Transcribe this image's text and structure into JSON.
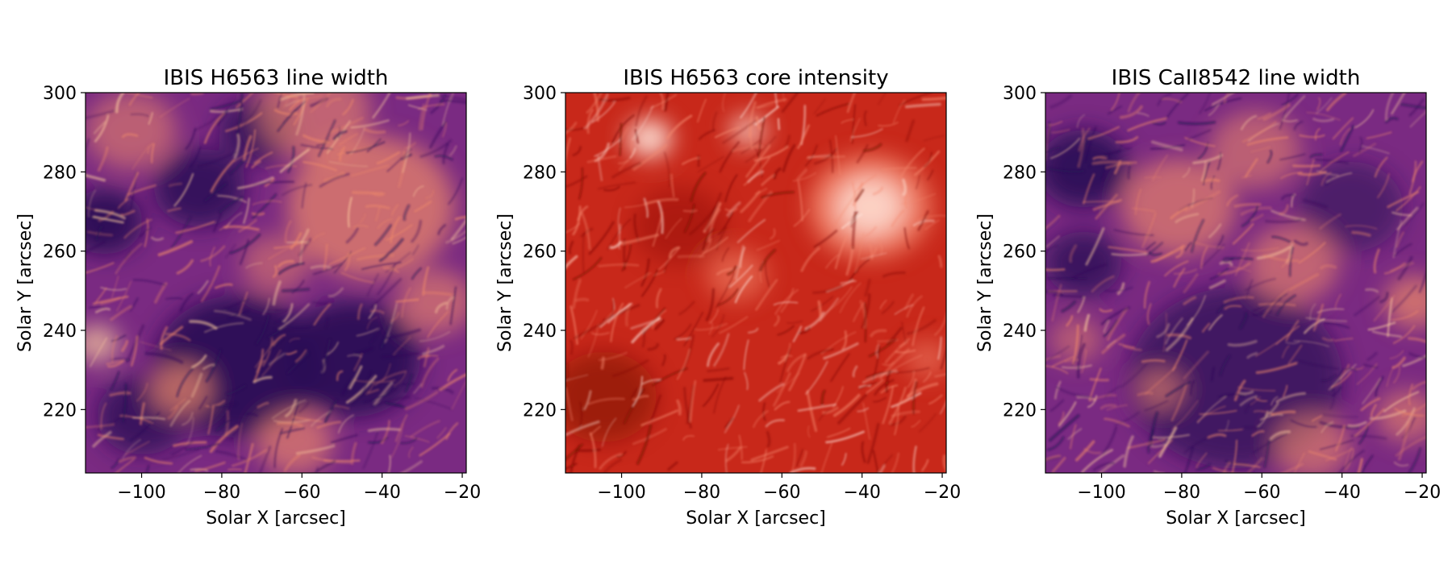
{
  "chart_data": [
    {
      "type": "heatmap",
      "title": "IBIS H6563 line width",
      "xlabel": "Solar X [arcsec]",
      "ylabel": "Solar Y [arcsec]",
      "xlim": [
        -114,
        -19
      ],
      "ylim": [
        204,
        300
      ],
      "xticks": [
        -100,
        -80,
        -60,
        -40,
        -20
      ],
      "xtick_labels": [
        "−100",
        "−80",
        "−60",
        "−40",
        "−20"
      ],
      "yticks": [
        220,
        240,
        260,
        280,
        300
      ],
      "ytick_labels": [
        "220",
        "240",
        "260",
        "280",
        "300"
      ],
      "colormap": "magma",
      "grid": false
    },
    {
      "type": "heatmap",
      "title": "IBIS H6563 core intensity",
      "xlabel": "Solar X [arcsec]",
      "ylabel": "Solar Y [arcsec]",
      "xlim": [
        -114,
        -19
      ],
      "ylim": [
        204,
        300
      ],
      "xticks": [
        -100,
        -80,
        -60,
        -40,
        -20
      ],
      "xtick_labels": [
        "−100",
        "−80",
        "−60",
        "−40",
        "−20"
      ],
      "yticks": [
        220,
        240,
        260,
        280,
        300
      ],
      "ytick_labels": [
        "220",
        "240",
        "260",
        "280",
        "300"
      ],
      "colormap": "reds",
      "grid": false
    },
    {
      "type": "heatmap",
      "title": "IBIS CaII8542 line width",
      "xlabel": "Solar X [arcsec]",
      "ylabel": "Solar Y [arcsec]",
      "xlim": [
        -114,
        -19
      ],
      "ylim": [
        204,
        300
      ],
      "xticks": [
        -100,
        -80,
        -60,
        -40,
        -20
      ],
      "xtick_labels": [
        "−100",
        "−80",
        "−60",
        "−40",
        "−20"
      ],
      "yticks": [
        220,
        240,
        260,
        280,
        300
      ],
      "ytick_labels": [
        "220",
        "240",
        "260",
        "280",
        "300"
      ],
      "colormap": "magma",
      "grid": false
    }
  ],
  "colors": {
    "magma_dark": "#2a0f55",
    "magma_mid": "#7a2a82",
    "magma_bright": "#f08a6a",
    "magma_highlight": "#ffd0a0",
    "red_dark": "#7a0d05",
    "red_mid": "#c8281a",
    "red_bright": "#f58a70",
    "red_highlight": "#ffe6dc"
  }
}
